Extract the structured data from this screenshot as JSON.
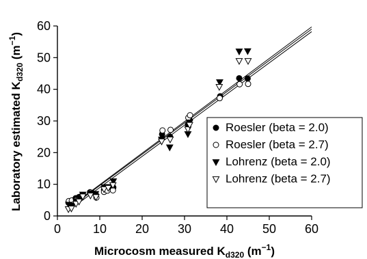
{
  "chart_data": {
    "type": "scatter",
    "xlabel": "Microcosm measured K",
    "xlabel_sub": "d320",
    "xlabel_unit": " (m",
    "xlabel_sup": "−1",
    "xlabel_end": ")",
    "ylabel": "Laboratory estimated K",
    "ylabel_sub": "d320",
    "ylabel_unit": " (m",
    "ylabel_sup": "−1",
    "ylabel_end": ")",
    "xlim": [
      0,
      60
    ],
    "ylim": [
      0,
      60
    ],
    "xticks": [
      "0",
      "10",
      "20",
      "30",
      "40",
      "50",
      "60"
    ],
    "yticks": [
      "0",
      "10",
      "20",
      "30",
      "40",
      "50",
      "60"
    ],
    "grid": false,
    "legend_position": "bottom-right",
    "series": [
      {
        "name": "Roesler (beta = 2.0)",
        "marker": "filled-circle",
        "color": "#000000",
        "points": [
          [
            2.6,
            4.2
          ],
          [
            3.4,
            4.5
          ],
          [
            4.3,
            5.6
          ],
          [
            5.1,
            6.0
          ],
          [
            5.9,
            6.5
          ],
          [
            7.7,
            7.5
          ],
          [
            9.1,
            6.7
          ],
          [
            11.0,
            8.2
          ],
          [
            11.9,
            8.5
          ],
          [
            13.2,
            9.0
          ],
          [
            24.7,
            25.8
          ],
          [
            26.6,
            25.0
          ],
          [
            30.8,
            28.8
          ],
          [
            31.2,
            30.3
          ],
          [
            38.4,
            37.8
          ],
          [
            42.9,
            43.5
          ],
          [
            44.9,
            43.4
          ]
        ]
      },
      {
        "name": "Roesler (beta = 2.7)",
        "marker": "open-circle",
        "color": "#000000",
        "points": [
          [
            2.7,
            4.7
          ],
          [
            3.4,
            4.9
          ],
          [
            4.4,
            5.0
          ],
          [
            5.0,
            5.3
          ],
          [
            5.9,
            6.5
          ],
          [
            7.8,
            7.4
          ],
          [
            9.2,
            5.8
          ],
          [
            11.0,
            7.6
          ],
          [
            11.8,
            8.0
          ],
          [
            13.1,
            8.1
          ],
          [
            24.8,
            27.0
          ],
          [
            26.7,
            27.2
          ],
          [
            30.9,
            31.0
          ],
          [
            31.3,
            31.8
          ],
          [
            38.3,
            37.2
          ],
          [
            43.0,
            41.6
          ],
          [
            45.0,
            41.7
          ]
        ]
      },
      {
        "name": "Lohrenz (beta = 2.0)",
        "marker": "filled-triangle-down",
        "color": "#000000",
        "points": [
          [
            2.7,
            3.6
          ],
          [
            3.5,
            3.4
          ],
          [
            4.4,
            4.7
          ],
          [
            5.2,
            5.5
          ],
          [
            6.0,
            6.8
          ],
          [
            7.9,
            7.2
          ],
          [
            9.0,
            7.0
          ],
          [
            11.1,
            9.1
          ],
          [
            12.0,
            9.2
          ],
          [
            13.2,
            11.0
          ],
          [
            24.6,
            24.2
          ],
          [
            26.5,
            21.7
          ],
          [
            30.8,
            25.9
          ],
          [
            31.2,
            29.6
          ],
          [
            38.3,
            42.3
          ],
          [
            42.9,
            52.0
          ],
          [
            44.9,
            52.1
          ]
        ]
      },
      {
        "name": "Lohrenz (beta = 2.7)",
        "marker": "open-triangle-down",
        "color": "#000000",
        "points": [
          [
            2.6,
            2.2
          ],
          [
            3.3,
            2.4
          ],
          [
            4.4,
            3.9
          ],
          [
            5.1,
            4.6
          ],
          [
            6.0,
            6.2
          ],
          [
            7.8,
            6.5
          ],
          [
            9.1,
            6.0
          ],
          [
            11.0,
            8.5
          ],
          [
            12.0,
            8.9
          ],
          [
            13.1,
            9.8
          ],
          [
            24.6,
            23.6
          ],
          [
            26.6,
            24.2
          ],
          [
            30.8,
            27.4
          ],
          [
            31.2,
            28.8
          ],
          [
            38.2,
            40.8
          ],
          [
            42.9,
            49.0
          ],
          [
            45.0,
            49.0
          ]
        ]
      }
    ],
    "fit_lines": [
      {
        "x": [
          2.5,
          60
        ],
        "y": [
          2.4,
          59.7
        ]
      },
      {
        "x": [
          2.5,
          60
        ],
        "y": [
          2.2,
          59.0
        ]
      },
      {
        "x": [
          2.5,
          60
        ],
        "y": [
          1.6,
          58.2
        ]
      }
    ]
  }
}
